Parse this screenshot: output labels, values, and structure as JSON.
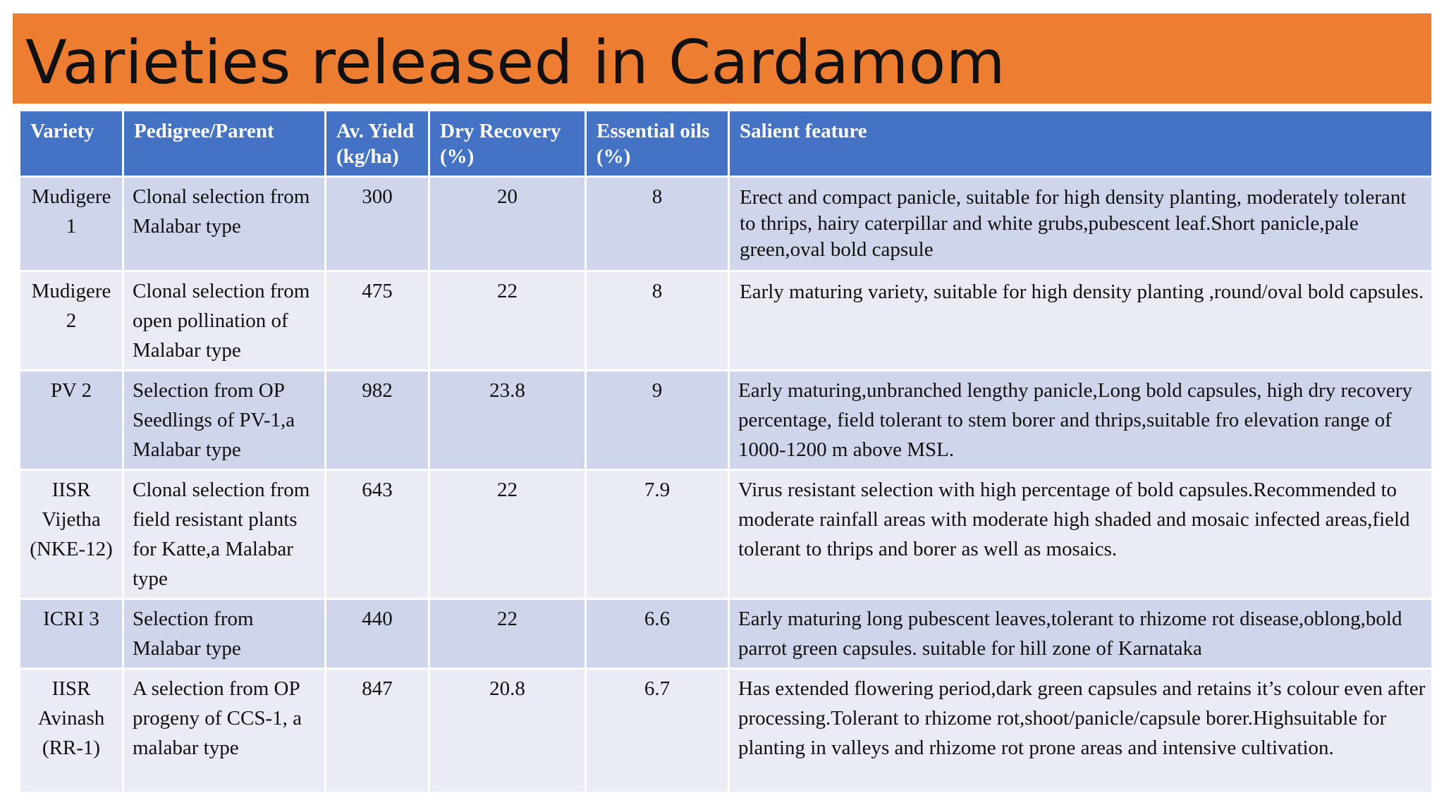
{
  "title": "Varieties released in Cardamom",
  "table": {
    "headers": [
      "Variety",
      "Pedigree/Parent",
      "Av. Yield (kg/ha)",
      "Dry Recovery (%)",
      "Essential oils (%)",
      "Salient feature"
    ],
    "rows": [
      {
        "variety": "Mudigere 1",
        "pedigree": "Clonal selection from Malabar type",
        "yield": "300",
        "dry_recovery": "20",
        "oils": "8",
        "feature": "Erect and compact panicle, suitable for high density planting, moderately tolerant to thrips, hairy caterpillar and white grubs,pubescent leaf.Short panicle,pale green,oval bold capsule"
      },
      {
        "variety": "Mudigere 2",
        "pedigree": "Clonal selection from open pollination of Malabar type",
        "yield": "475",
        "dry_recovery": "22",
        "oils": "8",
        "feature": "Early maturing variety, suitable for high density planting ,round/oval bold capsules."
      },
      {
        "variety": "PV 2",
        "pedigree": "Selection from OP Seedlings of PV-1,a Malabar type",
        "yield": "982",
        "dry_recovery": "23.8",
        "oils": "9",
        "feature": "Early maturing,unbranched lengthy panicle,Long bold capsules, high dry recovery percentage, field tolerant to stem borer and thrips,suitable fro elevation range of 1000-1200 m above MSL."
      },
      {
        "variety": "IISR Vijetha (NKE-12)",
        "pedigree": "Clonal selection from field resistant plants for Katte,a Malabar type",
        "yield": "643",
        "dry_recovery": "22",
        "oils": "7.9",
        "feature": "Virus resistant selection with high percentage of bold capsules.Recommended to moderate rainfall areas with moderate high shaded and mosaic infected areas,field tolerant to thrips and borer as well as mosaics."
      },
      {
        "variety": "ICRI 3",
        "pedigree": "Selection from Malabar type",
        "yield": "440",
        "dry_recovery": "22",
        "oils": "6.6",
        "feature": "Early maturing long pubescent leaves,tolerant to rhizome rot disease,oblong,bold parrot green capsules. suitable for hill zone of Karnataka"
      },
      {
        "variety": "IISR Avinash (RR-1)",
        "pedigree": "A selection from OP progeny of CCS-1, a malabar type",
        "yield": "847",
        "dry_recovery": "20.8",
        "oils": "6.7",
        "feature": "Has extended flowering period,dark green capsules and retains it’s colour even after processing.Tolerant to rhizome rot,shoot/panicle/capsule borer.Highsuitable for planting in valleys and rhizome rot prone areas and intensive cultivation."
      }
    ]
  }
}
